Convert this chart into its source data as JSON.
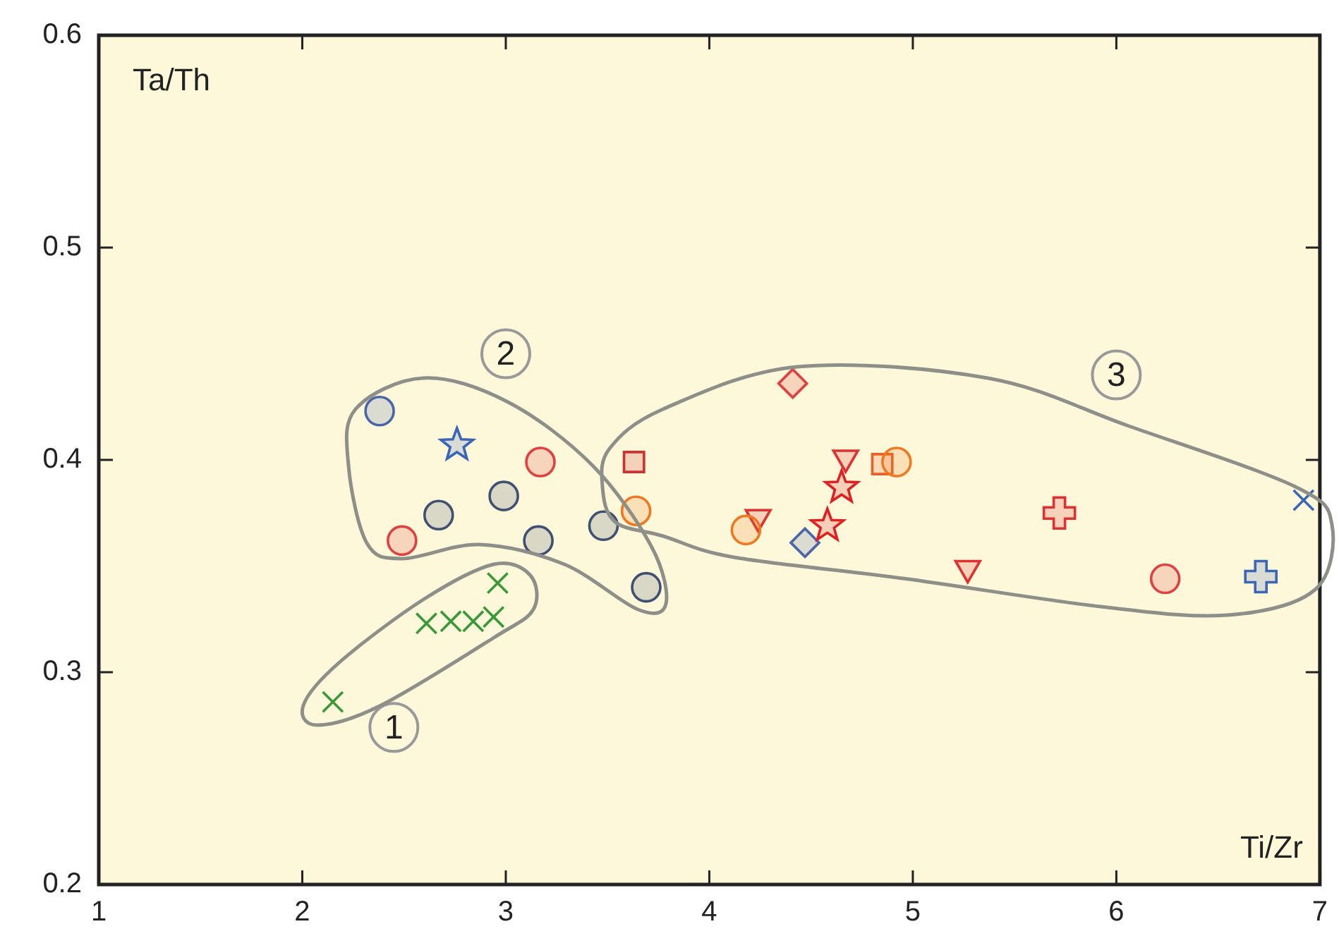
{
  "chart_data": {
    "type": "scatter",
    "xlabel": "Ti/Zr",
    "ylabel": "Ta/Th",
    "xlim": [
      1,
      7
    ],
    "ylim": [
      0.2,
      0.6
    ],
    "xticks": [
      1,
      2,
      3,
      4,
      5,
      6,
      7
    ],
    "yticks": [
      0.2,
      0.3,
      0.4,
      0.5,
      0.6
    ],
    "grid": false,
    "legend": false,
    "series": [
      {
        "color": "#3a9a3a",
        "marker": "x",
        "x": [
          2.15,
          2.61,
          2.73,
          2.84,
          2.94,
          2.96
        ],
        "values": [
          0.286,
          0.323,
          0.324,
          0.324,
          0.326,
          0.342
        ]
      },
      {
        "color": "#405070",
        "marker": "circle",
        "x": [
          2.67,
          2.99,
          3.16,
          3.48,
          3.69
        ],
        "values": [
          0.374,
          0.383,
          0.362,
          0.369,
          0.34
        ]
      },
      {
        "color": "#4a66a8",
        "marker": "circle",
        "x": [
          2.38
        ],
        "values": [
          0.423
        ]
      },
      {
        "color": "#3a66b8",
        "marker": "star",
        "x": [
          2.76
        ],
        "values": [
          0.407
        ]
      },
      {
        "color": "#e04040",
        "marker": "circle",
        "x": [
          2.49,
          3.17
        ],
        "values": [
          0.362,
          0.399
        ]
      },
      {
        "color": "#d03030",
        "marker": "square",
        "x": [
          3.63
        ],
        "values": [
          0.399
        ]
      },
      {
        "color": "#f07820",
        "marker": "circle",
        "x": [
          3.64
        ],
        "values": [
          0.376
        ]
      },
      {
        "color": "#f07820",
        "marker": "circle",
        "x": [
          4.18,
          4.92
        ],
        "values": [
          0.367,
          0.399
        ]
      },
      {
        "color": "#e03030",
        "marker": "triangle",
        "x": [
          4.24,
          4.67,
          5.27
        ],
        "values": [
          0.373,
          0.401,
          0.349
        ]
      },
      {
        "color": "#e04040",
        "marker": "diamond",
        "x": [
          4.41
        ],
        "values": [
          0.436
        ]
      },
      {
        "color": "#4a66a8",
        "marker": "diamond",
        "x": [
          4.47
        ],
        "values": [
          0.361
        ]
      },
      {
        "color": "#e02020",
        "marker": "star",
        "x": [
          4.58,
          4.65
        ],
        "values": [
          0.369,
          0.387
        ]
      },
      {
        "color": "#e8602a",
        "marker": "square",
        "x": [
          4.85
        ],
        "values": [
          0.398
        ]
      },
      {
        "color": "#e03030",
        "marker": "cross",
        "x": [
          5.72
        ],
        "values": [
          0.375
        ]
      },
      {
        "color": "#e04040",
        "marker": "circle",
        "x": [
          6.24
        ],
        "values": [
          0.344
        ]
      },
      {
        "color": "#3a66b8",
        "marker": "cross",
        "x": [
          6.71
        ],
        "values": [
          0.345
        ]
      },
      {
        "color": "#3a66b8",
        "marker": "x",
        "x": [
          6.92
        ],
        "values": [
          0.381
        ]
      }
    ],
    "annotations": [
      {
        "text": "1",
        "x": 2.45,
        "y": 0.274
      },
      {
        "text": "2",
        "x": 3.0,
        "y": 0.45
      },
      {
        "text": "3",
        "x": 6.0,
        "y": 0.44
      }
    ]
  }
}
